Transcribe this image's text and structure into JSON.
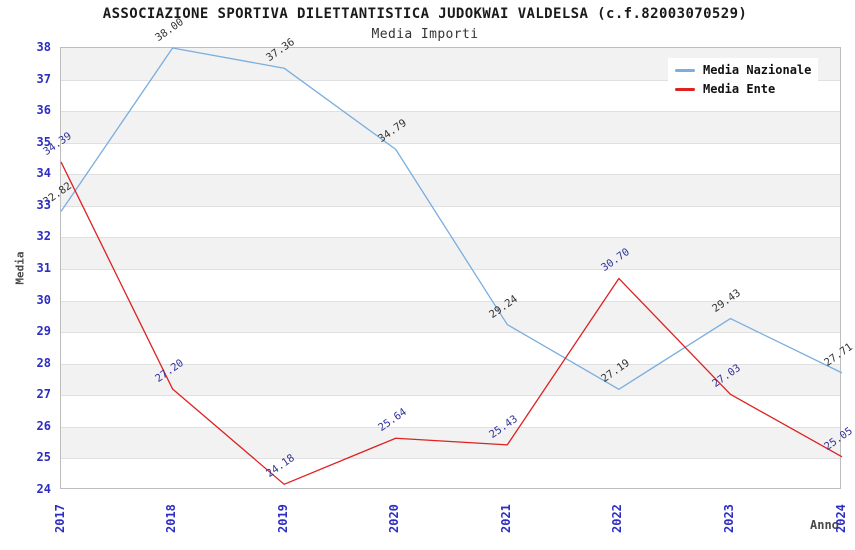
{
  "title": "ASSOCIAZIONE SPORTIVA DILETTANTISTICA JUDOKWAI VALDELSA (c.f.82003070529)",
  "subtitle": "Media Importi",
  "chart_data": {
    "type": "line",
    "x": [
      "2017",
      "2018",
      "2019",
      "2020",
      "2021",
      "2022",
      "2023",
      "2024"
    ],
    "series": [
      {
        "name": "Media Nazionale",
        "color": "#7aaede",
        "label_color": "#333333",
        "values": [
          32.82,
          38.0,
          37.36,
          34.79,
          29.24,
          27.19,
          29.43,
          27.71
        ]
      },
      {
        "name": "Media Ente",
        "color": "#dd2222",
        "label_color": "#333399",
        "values": [
          34.39,
          27.2,
          24.18,
          25.64,
          25.43,
          30.7,
          27.03,
          25.05
        ]
      }
    ],
    "xlabel": "Anno",
    "ylabel": "Media",
    "ylim": [
      24,
      38
    ],
    "ytick_step": 1,
    "grid": true,
    "legend_position": "top-right",
    "label_decimals": 2
  },
  "colors": {
    "background": "#ffffff",
    "title_text": "#1a1a1a",
    "tick_label": "#2d2dc4",
    "axis_title": "#4a4a4a",
    "stripe": "#f2f2f2",
    "grid_line": "#e0e0e0",
    "plot_border": "#bdbdbd",
    "legend_text": "#111111"
  }
}
